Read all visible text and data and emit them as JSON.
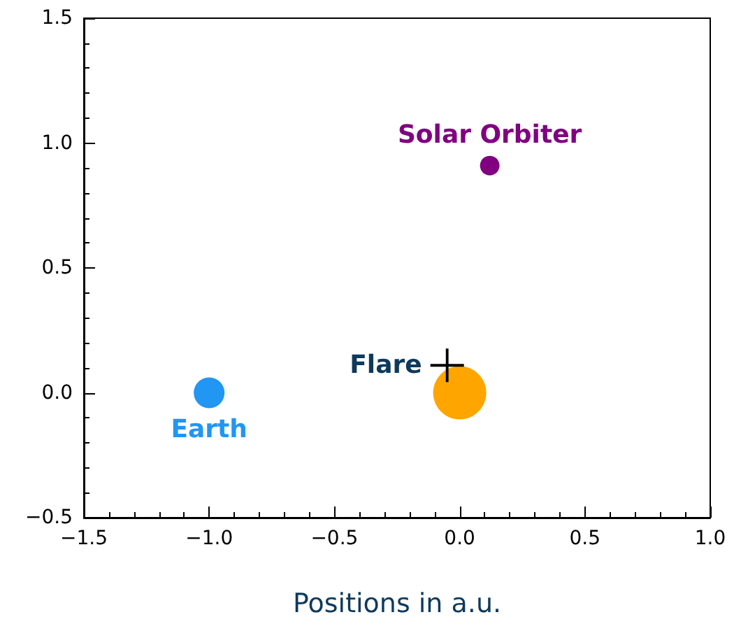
{
  "chart_data": {
    "type": "scatter",
    "xlabel": "Positions in a.u.",
    "xlim": [
      -1.5,
      1.0
    ],
    "xticks": [
      {
        "value": -1.5,
        "label": "−1.5"
      },
      {
        "value": -1.0,
        "label": "−1.0"
      },
      {
        "value": -0.5,
        "label": "−0.5"
      },
      {
        "value": 0,
        "label": "0.0"
      },
      {
        "value": 0.5,
        "label": "0.5"
      },
      {
        "value": 1.0,
        "label": "1.0"
      }
    ],
    "ylim": [
      -0.5,
      1.5
    ],
    "yticks": [
      {
        "value": -0.5,
        "label": "−0.5"
      },
      {
        "value": 0,
        "label": "0.0"
      },
      {
        "value": 0.5,
        "label": "0.5"
      },
      {
        "value": 1.0,
        "label": "1.0"
      },
      {
        "value": 1.5,
        "label": "1.5"
      }
    ],
    "grid": false,
    "legend": false,
    "series": [
      {
        "name": "Earth",
        "color": "#2196f3",
        "x": [
          -1.0
        ],
        "values": [
          0.0
        ],
        "marker": "circle"
      },
      {
        "color": "#ffa500",
        "x": [
          0.0
        ],
        "values": [
          0.0
        ],
        "marker": "circle"
      },
      {
        "name": "Solar Orbiter",
        "color": "#800080",
        "x": [
          0.12
        ],
        "values": [
          0.91
        ],
        "marker": "circle"
      },
      {
        "name": "Flare",
        "color": "#000000",
        "x": [
          -0.05
        ],
        "values": [
          0.11
        ],
        "marker": "cross"
      }
    ]
  }
}
